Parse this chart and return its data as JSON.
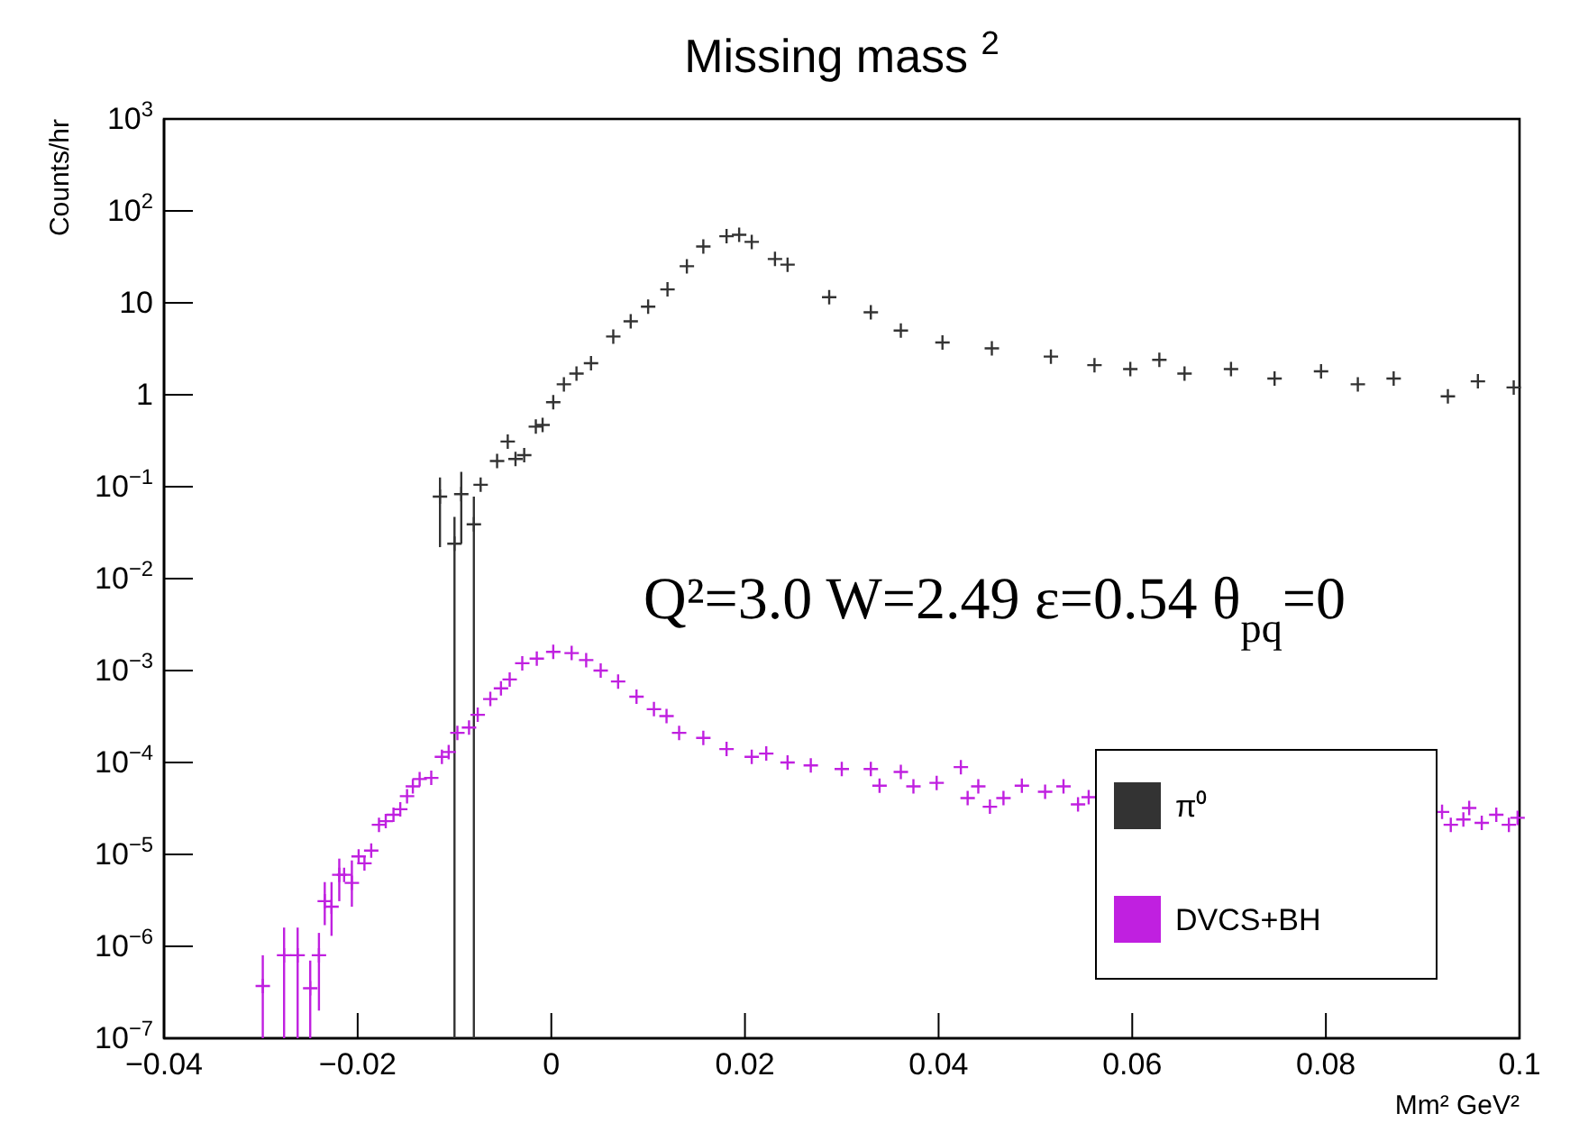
{
  "chart_data": {
    "type": "scatter",
    "title": "Missing mass $^{2}$",
    "xlabel": "Mm² GeV²",
    "ylabel": "Counts/hr",
    "log": "y",
    "marker": "cross",
    "legend": "bottom right",
    "grid": false,
    "xlim": [
      -0.04,
      0.1
    ],
    "xticks": [
      {
        "value": -0.04,
        "label": "−0.04"
      },
      {
        "value": -0.02,
        "label": "−0.02"
      },
      0,
      0.02,
      0.04,
      0.06,
      0.08,
      0.1
    ],
    "ylim": [
      1e-07,
      1000
    ],
    "yticks": [
      {
        "value": 1e-07,
        "label": "10$^{−7}$"
      },
      {
        "value": 1e-06,
        "label": "10$^{−6}$"
      },
      {
        "value": 1e-05,
        "label": "10$^{−5}$"
      },
      {
        "value": 0.0001,
        "label": "10$^{−4}$"
      },
      {
        "value": 0.001,
        "label": "10$^{−3}$"
      },
      {
        "value": 0.01,
        "label": "10$^{−2}$"
      },
      {
        "value": 0.1,
        "label": "10$^{−1}$"
      },
      1,
      10,
      {
        "value": 100,
        "label": "10$^{2}$"
      },
      {
        "value": 1000,
        "label": "10$^{3}$"
      }
    ],
    "annotations": [
      "Q²=3.0 W=2.49 ε=0.54 θ$_{pq}$=0"
    ],
    "series": [
      {
        "name": "π⁰",
        "color": "#333333",
        "x": [
          -0.0115,
          -0.01,
          -0.0093,
          -0.008,
          -0.0073,
          -0.0056,
          -0.0045,
          -0.0037,
          -0.0028,
          -0.0016,
          -0.0009,
          0.0002,
          0.0013,
          0.0026,
          0.0041,
          0.0064,
          0.0082,
          0.01,
          0.012,
          0.014,
          0.0157,
          0.0181,
          0.0194,
          0.0207,
          0.0231,
          0.0244,
          0.0287,
          0.033,
          0.0361,
          0.0404,
          0.0455,
          0.0516,
          0.0561,
          0.0598,
          0.0628,
          0.0654,
          0.0702,
          0.0747,
          0.0795,
          0.0833,
          0.087,
          0.0926,
          0.0957,
          0.0994
        ],
        "values": [
          0.078,
          0.024,
          0.083,
          0.039,
          0.105,
          0.19,
          0.31,
          0.2,
          0.22,
          0.45,
          0.47,
          0.83,
          1.3,
          1.7,
          2.2,
          4.3,
          6.3,
          9.1,
          14,
          25,
          41,
          53,
          55,
          46,
          30,
          26,
          11.5,
          7.9,
          5,
          3.7,
          3.2,
          2.6,
          2.1,
          1.9,
          2.4,
          1.7,
          1.9,
          1.5,
          1.8,
          1.3,
          1.5,
          0.96,
          1.4,
          1.2
        ],
        "errors": [
          [
            0.022,
            0.126
          ],
          [
            1e-07,
            0.047
          ],
          [
            0.024,
            0.145
          ],
          [
            1e-07,
            0.078
          ],
          null,
          null,
          null,
          null,
          null,
          null,
          null,
          null,
          null,
          null,
          null,
          null,
          null,
          null,
          null,
          null,
          null,
          null,
          null,
          null,
          null,
          null,
          null,
          null,
          null,
          null,
          null,
          null,
          null,
          null,
          null,
          null,
          null,
          null,
          null,
          null,
          null,
          null,
          null,
          null
        ]
      },
      {
        "name": "DVCS+BH",
        "color": "#c020e0",
        "x": [
          -0.0298,
          -0.0276,
          -0.0262,
          -0.0249,
          -0.024,
          -0.0234,
          -0.0227,
          -0.0219,
          -0.0214,
          -0.0206,
          -0.0199,
          -0.0193,
          -0.0186,
          -0.0178,
          -0.0171,
          -0.0163,
          -0.0156,
          -0.0149,
          -0.0143,
          -0.0136,
          -0.0124,
          -0.0113,
          -0.0106,
          -0.0097,
          -0.0085,
          -0.0076,
          -0.0063,
          -0.0052,
          -0.0043,
          -0.003,
          -0.0015,
          0.0002,
          0.0021,
          0.0036,
          0.0051,
          0.0069,
          0.0088,
          0.0106,
          0.0119,
          0.0132,
          0.0157,
          0.0181,
          0.0207,
          0.0222,
          0.0244,
          0.0268,
          0.03,
          0.033,
          0.0339,
          0.0361,
          0.0374,
          0.0398,
          0.0423,
          0.043,
          0.0441,
          0.0453,
          0.0467,
          0.0486,
          0.051,
          0.0529,
          0.0544,
          0.0555,
          0.092,
          0.0929,
          0.0942,
          0.0948,
          0.0961,
          0.0976,
          0.0989,
          0.0998
        ],
        "values": [
          3.7e-07,
          8e-07,
          8e-07,
          3.5e-07,
          8e-07,
          3.1e-06,
          2.7e-06,
          6e-06,
          6e-06,
          4.9e-06,
          9.5e-06,
          8e-06,
          1.1e-05,
          2.1e-05,
          2.3e-05,
          2.7e-05,
          3.1e-05,
          4.3e-05,
          5.5e-05,
          6.6e-05,
          6.8e-05,
          0.000115,
          0.00013,
          0.00021,
          0.00024,
          0.00033,
          0.00049,
          0.00064,
          0.0008,
          0.0012,
          0.00135,
          0.0016,
          0.00155,
          0.0013,
          0.001,
          0.00076,
          0.00052,
          0.00038,
          0.00032,
          0.00021,
          0.000185,
          0.00014,
          0.000115,
          0.000125,
          0.0001,
          9.3e-05,
          8.5e-05,
          8.5e-05,
          5.6e-05,
          7.9e-05,
          5.5e-05,
          6e-05,
          8.9e-05,
          4.1e-05,
          5.5e-05,
          3.3e-05,
          4.1e-05,
          5.6e-05,
          4.8e-05,
          5.5e-05,
          3.5e-05,
          4.2e-05,
          2.9e-05,
          2.1e-05,
          2.4e-05,
          3.2e-05,
          2.2e-05,
          2.7e-05,
          2.1e-05,
          2.5e-05
        ],
        "errors": [
          [
            1e-07,
            8e-07
          ],
          [
            1e-07,
            1.6e-06
          ],
          [
            1e-07,
            1.6e-06
          ],
          [
            1e-07,
            7e-07
          ],
          [
            2e-07,
            1.4e-06
          ],
          [
            1.7e-06,
            5e-06
          ],
          [
            1.3e-06,
            5e-06
          ],
          [
            3.1e-06,
            9e-06
          ],
          null,
          [
            2.7e-06,
            8.6e-06
          ],
          null,
          null,
          null,
          null,
          null,
          null,
          null,
          null,
          null,
          null,
          null,
          null,
          null,
          null,
          null,
          null,
          null,
          null,
          null,
          null,
          null,
          null,
          null,
          null,
          null,
          null,
          null,
          null,
          null,
          null,
          null,
          null,
          null,
          null,
          null,
          null,
          null,
          null,
          null,
          null,
          null,
          null,
          null,
          null,
          null,
          null,
          null,
          null,
          null,
          null,
          null,
          null,
          null,
          null,
          null,
          null,
          null,
          null,
          null,
          null
        ]
      }
    ]
  }
}
